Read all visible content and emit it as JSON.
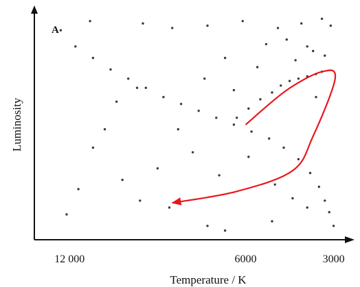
{
  "chart_data": {
    "type": "scatter",
    "panel_label": "A",
    "xlabel": "Temperature / K",
    "ylabel": "Luminosity",
    "x_scale": "reversed",
    "x_ticks": [
      {
        "value": 12000,
        "label": "12 000"
      },
      {
        "value": 6000,
        "label": "6000"
      },
      {
        "value": 3000,
        "label": "3000"
      }
    ],
    "xlim": [
      13200,
      2500
    ],
    "ylim": [
      0,
      100
    ],
    "grid": false,
    "legend": "none",
    "colors": {
      "points": "#3a3a3a",
      "track": "#e8161b",
      "axis": "#111111"
    },
    "series": [
      {
        "kind": "main-sequence",
        "points": [
          [
            12300,
            91
          ],
          [
            11800,
            84
          ],
          [
            11200,
            79
          ],
          [
            10600,
            74
          ],
          [
            10000,
            70
          ],
          [
            9400,
            66
          ],
          [
            8800,
            62
          ],
          [
            8200,
            59
          ],
          [
            7600,
            56
          ],
          [
            7000,
            53
          ],
          [
            6400,
            50
          ],
          [
            5800,
            47
          ],
          [
            5200,
            44
          ],
          [
            4700,
            40
          ],
          [
            4200,
            35
          ],
          [
            3800,
            29
          ],
          [
            3500,
            23
          ],
          [
            3300,
            17
          ],
          [
            3150,
            12
          ],
          [
            3000,
            6
          ]
        ]
      },
      {
        "kind": "giant-branch",
        "points": [
          [
            6300,
            53
          ],
          [
            5900,
            57
          ],
          [
            5500,
            61
          ],
          [
            5100,
            64
          ],
          [
            4800,
            67
          ],
          [
            4500,
            69
          ],
          [
            4200,
            70
          ],
          [
            3900,
            71
          ],
          [
            3600,
            72
          ],
          [
            3400,
            73
          ]
        ]
      },
      {
        "kind": "scattered",
        "points": [
          [
            11300,
            95
          ],
          [
            9500,
            94
          ],
          [
            8500,
            92
          ],
          [
            7300,
            93
          ],
          [
            6100,
            95
          ],
          [
            4900,
            92
          ],
          [
            4100,
            94
          ],
          [
            3400,
            96
          ],
          [
            3100,
            93
          ],
          [
            5300,
            85
          ],
          [
            4600,
            87
          ],
          [
            3900,
            84
          ],
          [
            3300,
            80
          ],
          [
            6700,
            79
          ],
          [
            5600,
            75
          ],
          [
            4300,
            78
          ],
          [
            3700,
            82
          ],
          [
            7400,
            70
          ],
          [
            9700,
            66
          ],
          [
            10400,
            60
          ],
          [
            8300,
            48
          ],
          [
            11200,
            40
          ],
          [
            9000,
            31
          ],
          [
            10200,
            26
          ],
          [
            11700,
            22
          ],
          [
            9600,
            17
          ],
          [
            8600,
            14
          ],
          [
            12100,
            11
          ],
          [
            7300,
            6
          ],
          [
            6700,
            4
          ],
          [
            5000,
            24
          ],
          [
            5900,
            36
          ],
          [
            6900,
            28
          ],
          [
            4400,
            18
          ],
          [
            3900,
            14
          ],
          [
            5100,
            8
          ],
          [
            7800,
            38
          ],
          [
            10800,
            48
          ],
          [
            6400,
            65
          ],
          [
            3600,
            62
          ]
        ]
      }
    ],
    "evolution_track": [
      [
        6000,
        50
      ],
      [
        4600,
        65
      ],
      [
        3400,
        73
      ],
      [
        2950,
        70
      ],
      [
        3700,
        45
      ],
      [
        4400,
        30
      ],
      [
        6300,
        21
      ],
      [
        8500,
        16
      ]
    ]
  }
}
